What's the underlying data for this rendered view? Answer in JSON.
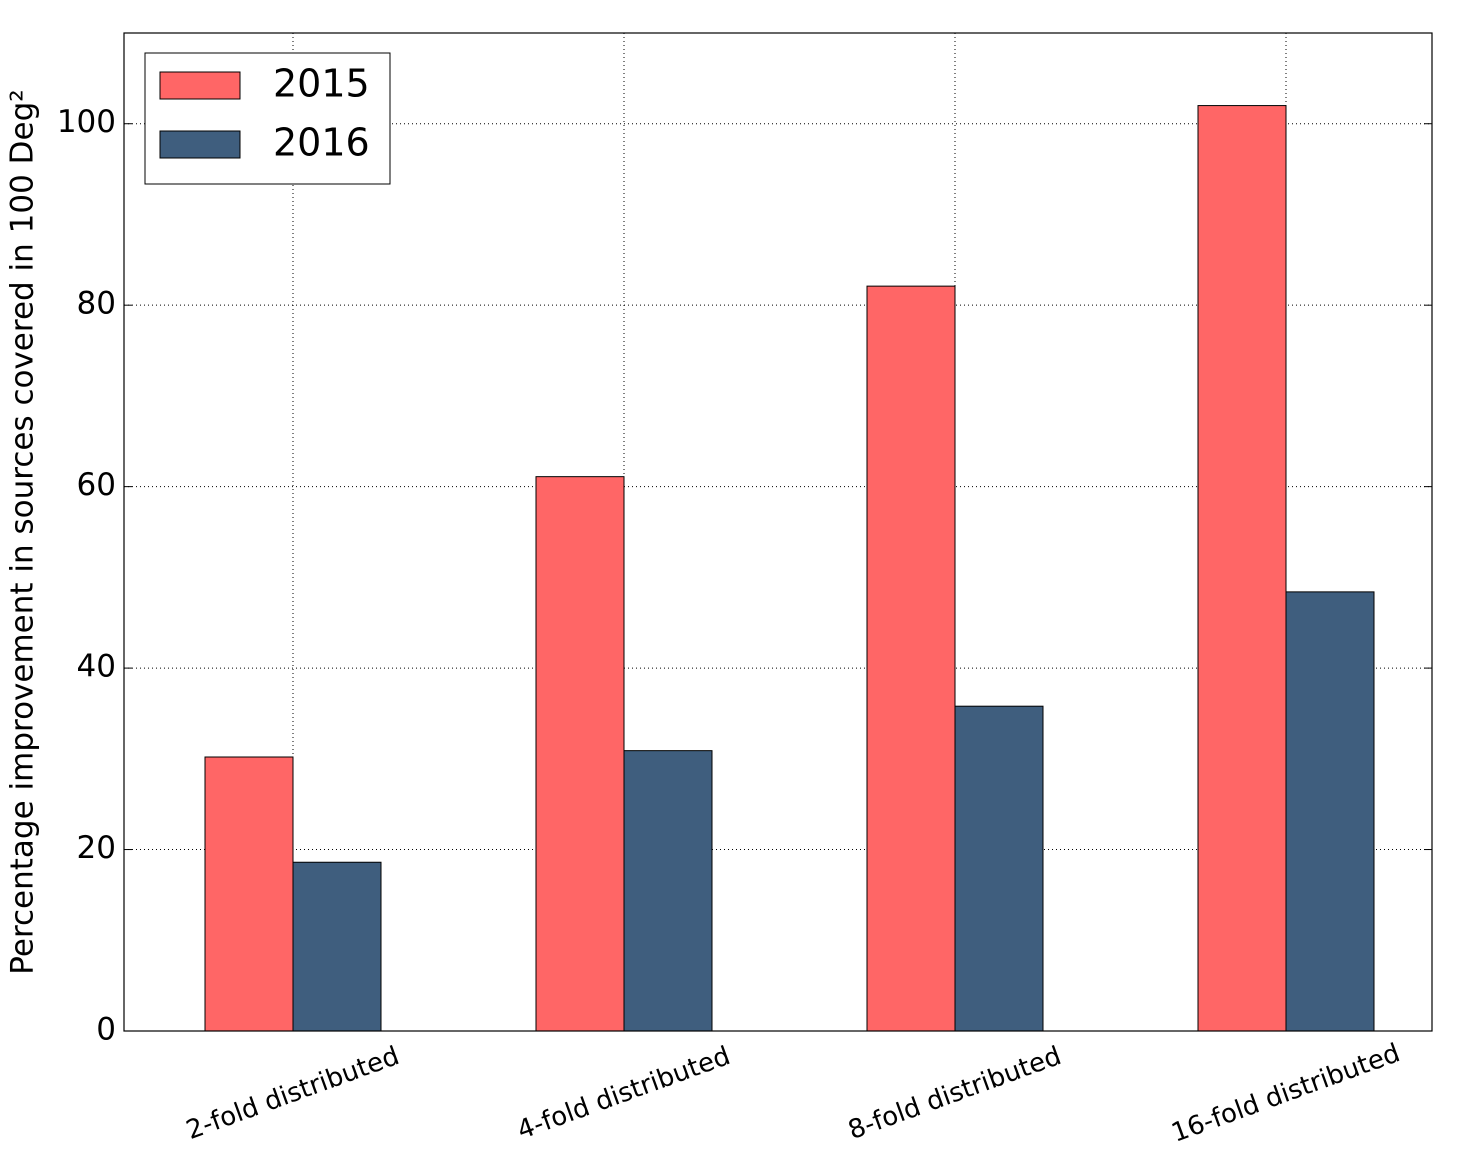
{
  "chart_data": {
    "type": "bar",
    "ylabel": "Percentage improvement in sources covered in 100 Deg²",
    "categories": [
      "2-fold distributed",
      "4-fold distributed",
      "8-fold distributed",
      "16-fold distributed"
    ],
    "series": [
      {
        "name": "2015",
        "color": "#ff6666",
        "values": [
          30.2,
          61.1,
          82.1,
          102
        ]
      },
      {
        "name": "2016",
        "color": "#3f5e7e",
        "values": [
          18.6,
          30.9,
          35.8,
          48.4
        ]
      }
    ],
    "ylim": [
      0,
      110
    ],
    "yticks": [
      0,
      20,
      40,
      60,
      80,
      100
    ],
    "grid": true,
    "legend": "upper left"
  }
}
